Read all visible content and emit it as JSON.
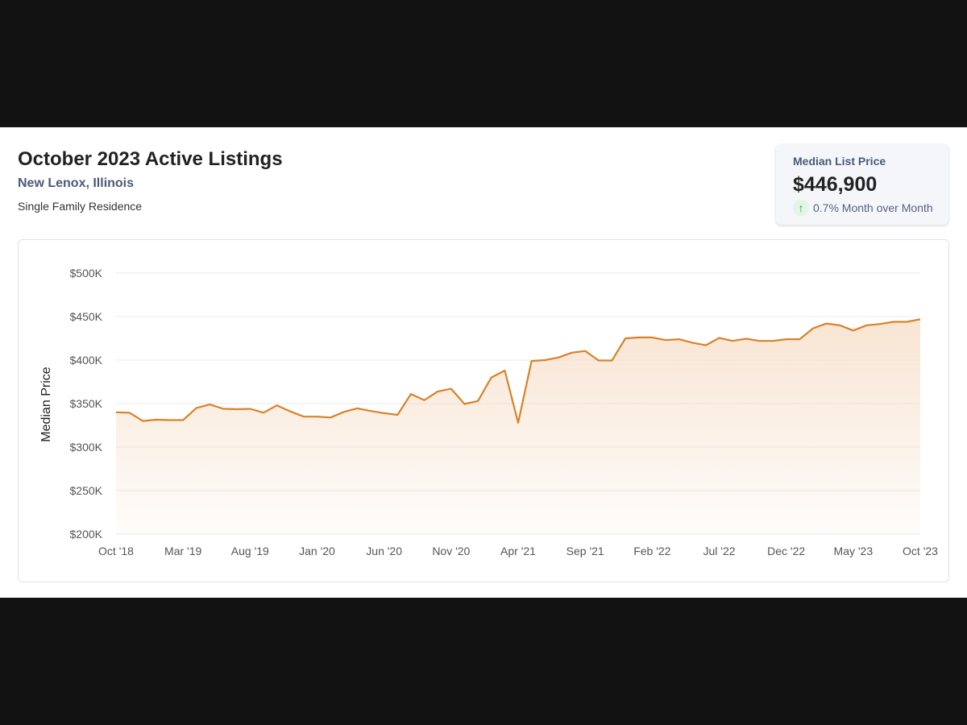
{
  "header": {
    "title": "October 2023 Active Listings",
    "location": "New Lenox, Illinois",
    "property_type": "Single Family Residence"
  },
  "kpi": {
    "label": "Median List Price",
    "value": "$446,900",
    "change": "0.7% Month over Month",
    "icon": "arrow-up-icon",
    "change_color": "#1e9a3a"
  },
  "colors": {
    "line": "#d9822b",
    "fill": "#f6dcc4",
    "grid": "#e6e8ec"
  },
  "chart_data": {
    "type": "area",
    "title": "",
    "xlabel": "",
    "ylabel": "Median Price",
    "ylim": [
      200000,
      500000
    ],
    "yticks": [
      {
        "value": 500000,
        "label": "$500K"
      },
      {
        "value": 450000,
        "label": "$450K"
      },
      {
        "value": 400000,
        "label": "$400K"
      },
      {
        "value": 350000,
        "label": "$350K"
      },
      {
        "value": 300000,
        "label": "$300K"
      },
      {
        "value": 250000,
        "label": "$250K"
      },
      {
        "value": 200000,
        "label": "$200K"
      }
    ],
    "x_labels": [
      {
        "month": "2018-10",
        "label": "Oct '18"
      },
      {
        "month": "2019-03",
        "label": "Mar '19"
      },
      {
        "month": "2019-08",
        "label": "Aug '19"
      },
      {
        "month": "2020-01",
        "label": "Jan '20"
      },
      {
        "month": "2020-06",
        "label": "Jun '20"
      },
      {
        "month": "2020-11",
        "label": "Nov '20"
      },
      {
        "month": "2021-04",
        "label": "Apr '21"
      },
      {
        "month": "2021-09",
        "label": "Sep '21"
      },
      {
        "month": "2022-02",
        "label": "Feb '22"
      },
      {
        "month": "2022-07",
        "label": "Jul '22"
      },
      {
        "month": "2022-12",
        "label": "Dec '22"
      },
      {
        "month": "2023-05",
        "label": "May '23"
      },
      {
        "month": "2023-10",
        "label": "Oct '23"
      }
    ],
    "x": [
      "2018-10",
      "2018-11",
      "2018-12",
      "2019-01",
      "2019-02",
      "2019-03",
      "2019-04",
      "2019-05",
      "2019-06",
      "2019-07",
      "2019-08",
      "2019-09",
      "2019-10",
      "2019-11",
      "2019-12",
      "2020-01",
      "2020-02",
      "2020-03",
      "2020-04",
      "2020-05",
      "2020-06",
      "2020-07",
      "2020-08",
      "2020-09",
      "2020-10",
      "2020-11",
      "2020-12",
      "2021-01",
      "2021-02",
      "2021-03",
      "2021-04",
      "2021-05",
      "2021-06",
      "2021-07",
      "2021-08",
      "2021-09",
      "2021-10",
      "2021-11",
      "2021-12",
      "2022-01",
      "2022-02",
      "2022-03",
      "2022-04",
      "2022-05",
      "2022-06",
      "2022-07",
      "2022-08",
      "2022-09",
      "2022-10",
      "2022-11",
      "2022-12",
      "2023-01",
      "2023-02",
      "2023-03",
      "2023-04",
      "2023-05",
      "2023-06",
      "2023-07",
      "2023-08",
      "2023-09",
      "2023-10"
    ],
    "series": [
      {
        "values": [
          340000,
          339500,
          330000,
          331500,
          331000,
          331000,
          345000,
          349000,
          344000,
          343500,
          344000,
          339500,
          348000,
          341000,
          335000,
          335000,
          334000,
          340500,
          344500,
          341500,
          339000,
          337000,
          361000,
          354000,
          364000,
          367000,
          349500,
          353000,
          380000,
          388000,
          328000,
          399000,
          400000,
          403000,
          408500,
          410500,
          399500,
          399500,
          425000,
          426000,
          426000,
          423000,
          424000,
          420000,
          417000,
          425500,
          422000,
          424500,
          422000,
          422000,
          424000,
          424000,
          436500,
          442000,
          440000,
          434000,
          440000,
          441500,
          444000,
          444000,
          446900
        ]
      }
    ]
  }
}
